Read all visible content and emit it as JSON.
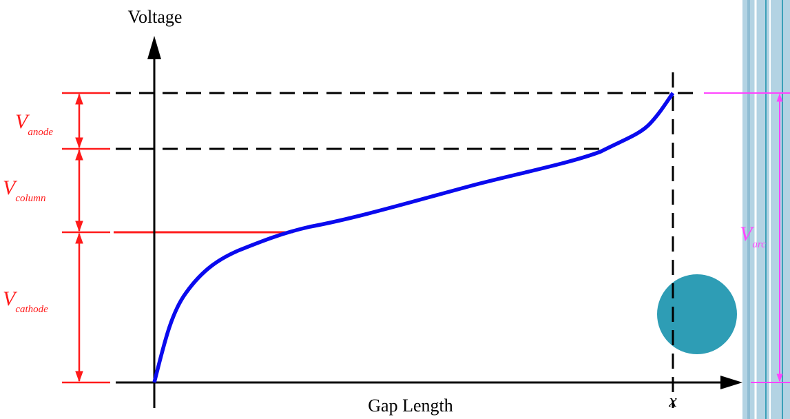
{
  "axes": {
    "y_label": "Voltage",
    "x_label": "Gap Length",
    "x_marker": "x"
  },
  "segments": [
    {
      "symbol": "V",
      "subscript": "anode"
    },
    {
      "symbol": "V",
      "subscript": "column"
    },
    {
      "symbol": "V",
      "subscript": "cathode"
    }
  ],
  "total": {
    "symbol": "V",
    "subscript": "arc"
  }
}
